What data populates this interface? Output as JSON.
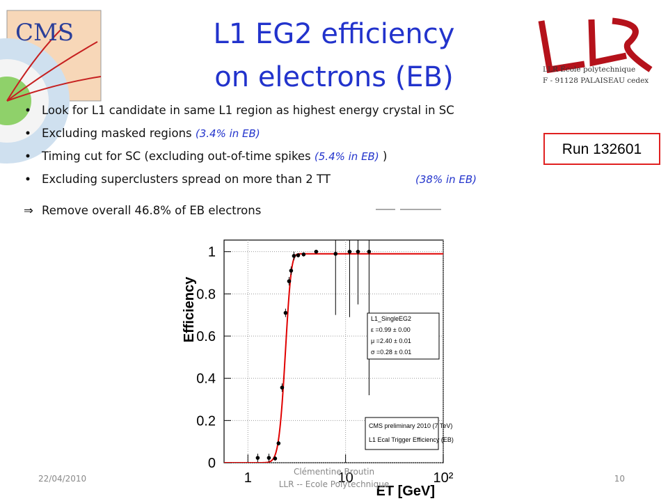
{
  "header": {
    "title_lines": [
      "L1 EG2 efficiency",
      "on electrons (EB)"
    ],
    "logo_left": "CMS",
    "logo_right": [
      "LLR École polytechnique",
      "F - 91128 PALAISEAU cedex"
    ]
  },
  "bullets": [
    {
      "text": "Look for L1 candidate in same L1 region as highest energy crystal in SC"
    },
    {
      "text": "Excluding masked regions ",
      "note": "(3.4% in EB)"
    },
    {
      "text": "Timing cut for SC (excluding out-of-time spikes ",
      "note": "(5.4% in EB)",
      "tail": " )"
    },
    {
      "text": "Excluding superclusters spread on more than 2 TT",
      "note": "(38% in EB)"
    }
  ],
  "conclusion": {
    "symbol": "⇒",
    "text": "Remove overall 46.8% of EB electrons"
  },
  "run_box": "Run 132601",
  "footer": {
    "date": "22/04/2010",
    "author": [
      "Clémentine Broutin",
      "LLR -- Ecole Polytechnique"
    ],
    "page": "10"
  },
  "chart_data": {
    "type": "scatter",
    "xlabel": "ET [GeV]",
    "ylabel": "Efficiency",
    "log_x": true,
    "grid": true,
    "x": [
      1.26,
      1.64,
      1.9,
      2.06,
      2.24,
      2.43,
      2.64,
      2.77,
      2.96,
      3.27,
      3.72,
      5.0,
      7.9,
      11.0,
      13.4,
      17.4
    ],
    "values": [
      0.023,
      0.023,
      0.02,
      0.092,
      0.356,
      0.71,
      0.86,
      0.91,
      0.98,
      0.983,
      0.987,
      1.0,
      0.99,
      1.0,
      1.0,
      1.0
    ],
    "errors": [
      0.02,
      0.02,
      0.01,
      0.01,
      0.02,
      0.02,
      0.02,
      0.02,
      0.02,
      0.01,
      0.01,
      0.005,
      0.29,
      0.31,
      0.25,
      0.68
    ],
    "color": "#000000",
    "xlim": [
      0.57,
      100
    ],
    "ylim": [
      0,
      1.055
    ],
    "xticks": [
      1,
      10,
      {
        "value": 100,
        "label": "10²"
      }
    ],
    "yticks": [
      0,
      0.2,
      0.4,
      0.6,
      0.8,
      1
    ],
    "fit": {
      "color": "#e00000",
      "epsilon": 0.99,
      "mu": 2.4,
      "sigma": 0.28,
      "legend": [
        "L1_SingleEG2",
        "ε =0.99 ± 0.00",
        "μ =2.40 ± 0.01",
        "σ =0.28 ± 0.01"
      ]
    },
    "annotations": [
      "CMS preliminary 2010 (7 TeV)",
      "L1 Ecal Trigger Efficiency (EB)"
    ]
  }
}
